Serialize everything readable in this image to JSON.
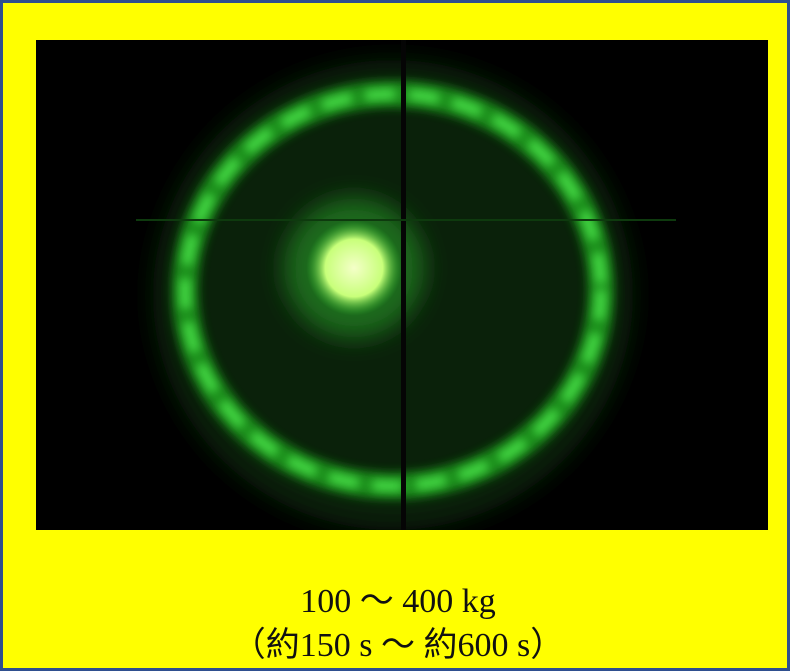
{
  "caption": {
    "line1": "100 ～ 400 kg",
    "line2": "（約150 s ～ 約600 s）"
  }
}
